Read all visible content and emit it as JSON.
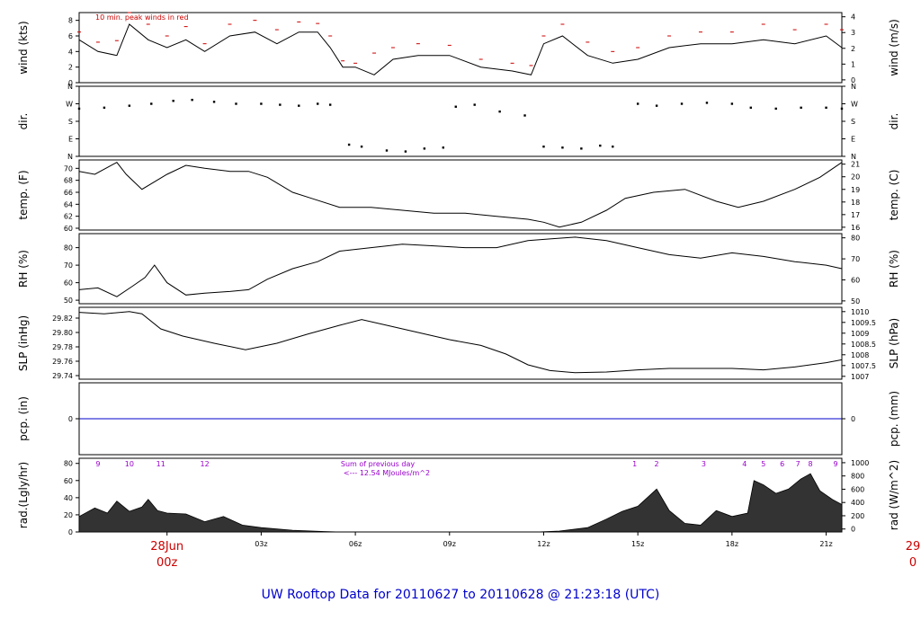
{
  "title": "UW Rooftop Data for 20110627  to  20110628 @ 21:23:18  (UTC)",
  "colors": {
    "line": "#000000",
    "peak": "#cc0000",
    "pcp_line": "#0000cc",
    "solar": "#9900cc",
    "title": "#0000cc"
  },
  "time_axis": {
    "ticks": [
      "03z",
      "06z",
      "09z",
      "12z",
      "15z",
      "18z",
      "21z"
    ],
    "day_start": {
      "day": "28Jun",
      "hour": "00z"
    },
    "day_end": {
      "day": "29",
      "hour": "0"
    }
  },
  "chart_data": [
    {
      "type": "line",
      "name": "wind",
      "ylabel_left": "wind (kts)",
      "ylabel_right": "wind (m/s)",
      "yticks_left": [
        "0",
        "2",
        "4",
        "6",
        "8"
      ],
      "yticks_right": [
        "0",
        "1",
        "2",
        "3",
        "4"
      ],
      "ylim": [
        0,
        9
      ],
      "annotation": "10 min. peak winds in red",
      "x_hours": [
        -2.8,
        -2.2,
        -1.6,
        -1.2,
        -0.6,
        0,
        0.6,
        1.2,
        2,
        2.8,
        3.5,
        4.2,
        4.8,
        5.2,
        5.6,
        6,
        6.6,
        7.2,
        8,
        9,
        10,
        11,
        11.6,
        12,
        12.6,
        13.4,
        14.2,
        15,
        16,
        17,
        18,
        19,
        20,
        21,
        21.5
      ],
      "values": [
        5.5,
        4,
        3.5,
        7.5,
        5.5,
        4.5,
        5.5,
        4,
        6,
        6.5,
        5,
        6.5,
        6.5,
        4.5,
        2,
        2,
        1,
        3,
        3.5,
        3.5,
        2,
        1.5,
        1,
        5,
        6,
        3.5,
        2.5,
        3,
        4.5,
        5,
        5,
        5.5,
        5,
        6,
        4.5
      ],
      "peaks": [
        6.5,
        5.2,
        5.4,
        9,
        7.5,
        6,
        7.2,
        5,
        7.5,
        8,
        6.8,
        7.8,
        7.6,
        6,
        2.8,
        2.5,
        3.8,
        4.5,
        5,
        4.8,
        3,
        2.5,
        2.2,
        6,
        7.5,
        5.2,
        4,
        4.5,
        6,
        6.5,
        6.5,
        7.5,
        6.8,
        7.5,
        6.8
      ]
    },
    {
      "type": "scatter",
      "name": "dir",
      "ylabel_left": "dir.",
      "ylabel_right": "dir.",
      "yticks_left": [
        "N",
        "E",
        "S",
        "W",
        "N"
      ],
      "yticks_right": [
        "N",
        "E",
        "S",
        "W",
        "N"
      ],
      "ylim": [
        0,
        360
      ],
      "x_hours": [
        -2.8,
        -2,
        -1.2,
        -0.5,
        0.2,
        0.8,
        1.5,
        2.2,
        3,
        3.6,
        4.2,
        4.8,
        5.2,
        5.8,
        6.2,
        7,
        7.6,
        8.2,
        8.8,
        9.2,
        9.8,
        10.6,
        11.4,
        12,
        12.6,
        13.2,
        13.8,
        14.2,
        15,
        15.6,
        16.4,
        17.2,
        18,
        18.6,
        19.4,
        20.2,
        21,
        21.5
      ],
      "values": [
        245,
        250,
        260,
        270,
        285,
        290,
        280,
        270,
        270,
        265,
        260,
        270,
        265,
        60,
        50,
        30,
        25,
        40,
        45,
        255,
        265,
        230,
        210,
        50,
        45,
        40,
        55,
        50,
        270,
        260,
        270,
        275,
        270,
        250,
        245,
        250,
        250,
        245
      ]
    },
    {
      "type": "line",
      "name": "temp",
      "ylabel_left": "temp. (F)",
      "ylabel_right": "temp. (C)",
      "yticks_left": [
        "60",
        "62",
        "64",
        "66",
        "68",
        "70"
      ],
      "yticks_right": [
        "16",
        "17",
        "18",
        "19",
        "20",
        "21"
      ],
      "ylim": [
        59.7,
        71.4
      ],
      "x_hours": [
        -2.8,
        -2.3,
        -1.6,
        -1.3,
        -0.8,
        0,
        0.6,
        1.2,
        2,
        2.6,
        3.2,
        4,
        4.6,
        5.5,
        6.5,
        7.5,
        8.5,
        9.5,
        10.5,
        11.5,
        12,
        12.5,
        13.2,
        14,
        14.6,
        15.5,
        16.5,
        17.5,
        18.2,
        19,
        20,
        20.8,
        21.5
      ],
      "values": [
        69.5,
        69,
        71,
        69,
        66.5,
        69,
        70.5,
        70,
        69.5,
        69.5,
        68.5,
        66,
        65,
        63.5,
        63.5,
        63,
        62.5,
        62.5,
        62,
        61.5,
        61,
        60.2,
        61,
        63,
        65,
        66,
        66.5,
        64.5,
        63.5,
        64.5,
        66.5,
        68.5,
        71
      ]
    },
    {
      "type": "line",
      "name": "rh",
      "ylabel_left": "RH (%)",
      "ylabel_right": "RH (%)",
      "yticks_left": [
        "50",
        "60",
        "70",
        "80"
      ],
      "yticks_right": [
        "50",
        "60",
        "70",
        "80"
      ],
      "ylim": [
        48,
        88
      ],
      "x_hours": [
        -2.8,
        -2.2,
        -1.6,
        -1.1,
        -0.7,
        -0.4,
        0,
        0.6,
        1.2,
        2,
        2.6,
        3.2,
        4,
        4.8,
        5.5,
        6.5,
        7.5,
        8.5,
        9.5,
        10.5,
        11.5,
        12.2,
        13,
        14,
        15,
        16,
        17,
        18,
        19,
        20,
        21,
        21.5
      ],
      "values": [
        56,
        57,
        52,
        58,
        63,
        70,
        60,
        53,
        54,
        55,
        56,
        62,
        68,
        72,
        78,
        80,
        82,
        81,
        80,
        80,
        84,
        85,
        86,
        84,
        80,
        76,
        74,
        77,
        75,
        72,
        70,
        68
      ]
    },
    {
      "type": "line",
      "name": "slp",
      "ylabel_left": "SLP (inHg)",
      "ylabel_right": "SLP (hPa)",
      "yticks_left": [
        "29.74",
        "29.76",
        "29.78",
        "29.80",
        "29.82"
      ],
      "yticks_right": [
        "1007",
        "1007.5",
        "1008",
        "1008.5",
        "1009",
        "1009.5",
        "1010"
      ],
      "ylim": [
        29.735,
        29.835
      ],
      "x_hours": [
        -2.8,
        -2,
        -1.2,
        -0.8,
        -0.2,
        0.5,
        1.5,
        2.5,
        3.5,
        4.5,
        5.5,
        6.2,
        7,
        8,
        9,
        10,
        10.8,
        11.5,
        12.2,
        13,
        14,
        15,
        16,
        17,
        18,
        19,
        20,
        21,
        21.5
      ],
      "values": [
        29.828,
        29.826,
        29.829,
        29.826,
        29.805,
        29.795,
        29.785,
        29.776,
        29.785,
        29.798,
        29.81,
        29.818,
        29.81,
        29.8,
        29.79,
        29.782,
        29.77,
        29.755,
        29.747,
        29.744,
        29.745,
        29.748,
        29.75,
        29.75,
        29.75,
        29.748,
        29.752,
        29.758,
        29.762
      ]
    },
    {
      "type": "line",
      "name": "pcp",
      "ylabel_left": "pcp. (in)",
      "ylabel_right": "pcp. (mm)",
      "yticks_left": [
        "0"
      ],
      "yticks_right": [
        "0"
      ],
      "ylim": [
        -1,
        1
      ],
      "x_hours": [
        -2.8,
        21.5
      ],
      "values": [
        0,
        0
      ]
    },
    {
      "type": "area",
      "name": "rad",
      "ylabel_left": "rad.(Lgly/hr)",
      "ylabel_right": "rad (W/m^2)",
      "yticks_left": [
        "0",
        "20",
        "40",
        "60",
        "80"
      ],
      "yticks_right": [
        "0",
        "200",
        "400",
        "600",
        "800",
        "1000"
      ],
      "ylim": [
        0,
        86
      ],
      "annotation_line1": "Sum of previous day",
      "annotation_line2": "<--- 12.54 MJoules/m^2",
      "hour_marks_previous_day": [
        {
          "label": "9",
          "x_hours": -2.2
        },
        {
          "label": "10",
          "x_hours": -1.2
        },
        {
          "label": "11",
          "x_hours": -0.2
        },
        {
          "label": "12",
          "x_hours": 1.2
        }
      ],
      "hour_marks_current_day": [
        {
          "label": "1",
          "x_hours": 14.9
        },
        {
          "label": "2",
          "x_hours": 15.6
        },
        {
          "label": "3",
          "x_hours": 17.1
        },
        {
          "label": "4",
          "x_hours": 18.4
        },
        {
          "label": "5",
          "x_hours": 19
        },
        {
          "label": "6",
          "x_hours": 19.6
        },
        {
          "label": "7",
          "x_hours": 20.1
        },
        {
          "label": "8",
          "x_hours": 20.5
        },
        {
          "label": "9",
          "x_hours": 21.3
        }
      ],
      "x_hours": [
        -2.8,
        -2.3,
        -1.9,
        -1.6,
        -1.2,
        -0.8,
        -0.6,
        -0.3,
        0,
        0.6,
        1.2,
        1.8,
        2.4,
        3,
        4,
        5,
        5.5,
        6,
        11.8,
        12.5,
        13.4,
        14,
        14.5,
        15,
        15.3,
        15.6,
        16,
        16.5,
        17,
        17.5,
        18,
        18.5,
        18.7,
        19,
        19.4,
        19.8,
        20.2,
        20.5,
        20.8,
        21.2,
        21.5
      ],
      "values": [
        18,
        28,
        22,
        36,
        24,
        29,
        38,
        25,
        22,
        21,
        12,
        18,
        8,
        5,
        2,
        0.5,
        0,
        0,
        0,
        1,
        5,
        15,
        24,
        30,
        40,
        50,
        25,
        10,
        8,
        25,
        18,
        22,
        60,
        55,
        45,
        50,
        62,
        68,
        48,
        38,
        32
      ]
    }
  ]
}
